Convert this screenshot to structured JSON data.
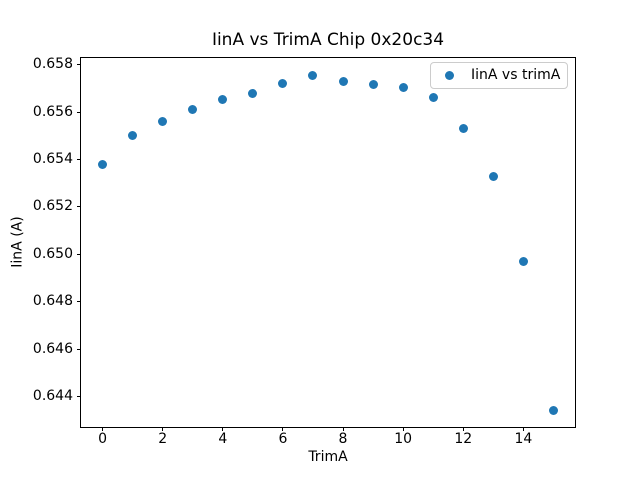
{
  "figure": {
    "background_color": "#ffffff",
    "spine_color": "#000000"
  },
  "chart_data": {
    "type": "scatter",
    "title": "IinA vs TrimA Chip 0x20c34",
    "xlabel": "TrimA",
    "ylabel": "IinA (A)",
    "marker_color": "#1f77b4",
    "grid": false,
    "legend_position": "upper right",
    "series": [
      {
        "name": "IinA vs trimA",
        "x": [
          0,
          1,
          2,
          3,
          4,
          5,
          6,
          7,
          8,
          9,
          10,
          11,
          12,
          13,
          14,
          15
        ],
        "y": [
          0.6538,
          0.655,
          0.6556,
          0.6561,
          0.65655,
          0.6568,
          0.6572,
          0.65755,
          0.6573,
          0.65715,
          0.65705,
          0.6566,
          0.6553,
          0.6533,
          0.6497,
          0.6434
        ]
      }
    ],
    "xlim": [
      -0.75,
      15.75
    ],
    "ylim": [
      0.6427,
      0.6583
    ],
    "x_ticks": [
      0,
      2,
      4,
      6,
      8,
      10,
      12,
      14
    ],
    "x_tick_labels": [
      "0",
      "2",
      "4",
      "6",
      "8",
      "10",
      "12",
      "14"
    ],
    "y_ticks": [
      0.644,
      0.646,
      0.648,
      0.65,
      0.652,
      0.654,
      0.656,
      0.658
    ],
    "y_tick_labels": [
      "0.644",
      "0.646",
      "0.648",
      "0.650",
      "0.652",
      "0.654",
      "0.656",
      "0.658"
    ]
  }
}
